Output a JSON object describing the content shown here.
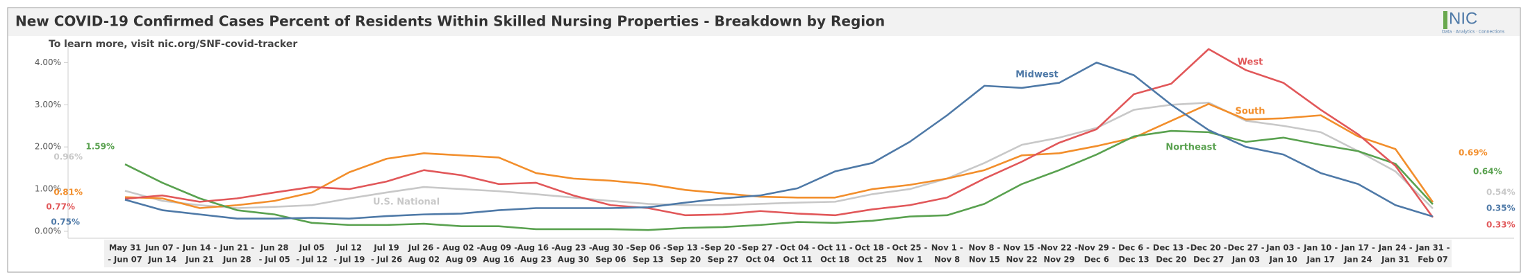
{
  "chart_data": {
    "type": "line",
    "title": "New COVID-19 Confirmed Cases Percent of Residents Within Skilled Nursing Properties - Breakdown by Region",
    "subtitle": "To learn more, visit nic.org/SNF-covid-tracker",
    "logo": "NIC",
    "logo_tagline": "Data · Analytics · Connections",
    "categories": [
      [
        "May 31",
        "- Jun 07"
      ],
      [
        "Jun 07 -",
        "Jun 14"
      ],
      [
        "Jun 14 -",
        "Jun 21"
      ],
      [
        "Jun 21 -",
        "Jun 28"
      ],
      [
        "Jun 28",
        "- Jul 05"
      ],
      [
        "Jul 05",
        "- Jul 12"
      ],
      [
        "Jul 12",
        "- Jul 19"
      ],
      [
        "Jul 19",
        "- Jul 26"
      ],
      [
        "Jul 26 -",
        "Aug 02"
      ],
      [
        "Aug 02 -",
        "Aug 09"
      ],
      [
        "Aug 09 -",
        "Aug 16"
      ],
      [
        "Aug 16 -",
        "Aug 23"
      ],
      [
        "Aug 23 -",
        "Aug 30"
      ],
      [
        "Aug 30 -",
        "Sep 06"
      ],
      [
        "Sep 06 -",
        "Sep 13"
      ],
      [
        "Sep 13 -",
        "Sep 20"
      ],
      [
        "Sep 20 -",
        "Sep 27"
      ],
      [
        "Sep 27 -",
        "Oct 04"
      ],
      [
        "Oct 04 -",
        "Oct 11"
      ],
      [
        "Oct 11 -",
        "Oct 18"
      ],
      [
        "Oct 18 -",
        "Oct 25"
      ],
      [
        "Oct 25 -",
        "Nov 1"
      ],
      [
        "Nov 1 -",
        "Nov 8"
      ],
      [
        "Nov 8 -",
        "Nov 15"
      ],
      [
        "Nov 15 -",
        "Nov 22"
      ],
      [
        "Nov 22 -",
        "Nov 29"
      ],
      [
        "Nov 29 -",
        "Dec 6"
      ],
      [
        "Dec 6 -",
        "Dec 13"
      ],
      [
        "Dec 13 -",
        "Dec 20"
      ],
      [
        "Dec 20 -",
        "Dec 27"
      ],
      [
        "Dec 27 -",
        "Jan 03"
      ],
      [
        "Jan 03 -",
        "Jan 10"
      ],
      [
        "Jan 10 -",
        "Jan 17"
      ],
      [
        "Jan 17 -",
        "Jan 24"
      ],
      [
        "Jan 24 -",
        "Jan 31"
      ],
      [
        "Jan 31 -",
        "Feb 07"
      ]
    ],
    "series": [
      {
        "name": "Midwest",
        "color": "#4e79a7",
        "values": [
          0.75,
          0.5,
          0.4,
          0.3,
          0.3,
          0.32,
          0.3,
          0.36,
          0.4,
          0.42,
          0.5,
          0.55,
          0.55,
          0.55,
          0.57,
          0.68,
          0.78,
          0.85,
          1.02,
          1.42,
          1.62,
          2.12,
          2.75,
          3.45,
          3.4,
          3.52,
          4.0,
          3.7,
          3.0,
          2.4,
          2.0,
          1.82,
          1.38,
          1.12,
          0.62,
          0.35
        ],
        "value_labels": [
          "0.75%",
          null,
          null,
          null,
          null,
          null,
          null,
          null,
          null,
          null,
          null,
          null,
          null,
          null,
          null,
          null,
          null,
          null,
          null,
          null,
          null,
          null,
          null,
          null,
          null,
          null,
          null,
          null,
          null,
          null,
          null,
          null,
          null,
          null,
          null,
          "0.35%"
        ]
      },
      {
        "name": "West",
        "color": "#e15759",
        "values": [
          0.77,
          0.85,
          0.7,
          0.78,
          0.92,
          1.05,
          1.0,
          1.18,
          1.45,
          1.33,
          1.12,
          1.15,
          0.85,
          0.62,
          0.55,
          0.38,
          0.4,
          0.48,
          0.42,
          0.38,
          0.52,
          0.62,
          0.8,
          1.25,
          1.65,
          2.1,
          2.42,
          3.25,
          3.5,
          4.32,
          3.82,
          3.52,
          2.88,
          2.3,
          1.55,
          0.33
        ],
        "value_labels": [
          "0.77%",
          null,
          null,
          null,
          null,
          null,
          null,
          null,
          null,
          null,
          null,
          null,
          null,
          null,
          null,
          null,
          null,
          null,
          null,
          null,
          null,
          null,
          null,
          null,
          null,
          null,
          null,
          null,
          null,
          null,
          null,
          null,
          null,
          null,
          null,
          "0.33%"
        ]
      },
      {
        "name": "South",
        "color": "#f28e2b",
        "values": [
          0.81,
          0.78,
          0.55,
          0.62,
          0.72,
          0.92,
          1.4,
          1.72,
          1.85,
          1.8,
          1.75,
          1.38,
          1.25,
          1.2,
          1.12,
          0.98,
          0.9,
          0.82,
          0.8,
          0.8,
          1.0,
          1.1,
          1.25,
          1.45,
          1.8,
          1.85,
          2.02,
          2.22,
          2.62,
          3.02,
          2.65,
          2.68,
          2.75,
          2.25,
          1.95,
          0.69
        ],
        "value_labels": [
          "0.81%",
          null,
          null,
          null,
          null,
          null,
          null,
          null,
          null,
          null,
          null,
          null,
          null,
          null,
          null,
          null,
          null,
          null,
          null,
          null,
          null,
          null,
          null,
          null,
          null,
          null,
          null,
          null,
          null,
          null,
          null,
          null,
          null,
          null,
          null,
          "0.69%"
        ]
      },
      {
        "name": "Northeast",
        "color": "#59a14f",
        "values": [
          1.59,
          1.15,
          0.78,
          0.5,
          0.4,
          0.2,
          0.15,
          0.15,
          0.18,
          0.12,
          0.12,
          0.05,
          0.05,
          0.05,
          0.03,
          0.08,
          0.1,
          0.15,
          0.22,
          0.2,
          0.25,
          0.35,
          0.38,
          0.65,
          1.12,
          1.45,
          1.82,
          2.25,
          2.38,
          2.35,
          2.12,
          2.22,
          2.05,
          1.9,
          1.6,
          0.64
        ],
        "value_labels": [
          "1.59%",
          null,
          null,
          null,
          null,
          null,
          null,
          null,
          null,
          null,
          null,
          null,
          null,
          null,
          null,
          null,
          null,
          null,
          null,
          null,
          null,
          null,
          null,
          null,
          null,
          null,
          null,
          null,
          null,
          null,
          null,
          null,
          null,
          null,
          null,
          "0.64%"
        ]
      },
      {
        "name": "U.S. National",
        "color": "#c8c8c8",
        "values": [
          0.96,
          0.72,
          0.62,
          0.55,
          0.58,
          0.62,
          0.78,
          0.92,
          1.05,
          1.0,
          0.95,
          0.88,
          0.8,
          0.72,
          0.65,
          0.62,
          0.62,
          0.65,
          0.68,
          0.7,
          0.88,
          1.0,
          1.25,
          1.62,
          2.05,
          2.22,
          2.45,
          2.88,
          3.0,
          3.05,
          2.62,
          2.5,
          2.35,
          1.9,
          1.42,
          0.54
        ],
        "value_labels": [
          "0.96%",
          null,
          null,
          null,
          null,
          null,
          null,
          null,
          null,
          null,
          null,
          null,
          null,
          null,
          null,
          null,
          null,
          null,
          null,
          null,
          null,
          null,
          null,
          null,
          null,
          null,
          null,
          null,
          null,
          null,
          null,
          null,
          null,
          null,
          null,
          "0.54%"
        ]
      }
    ],
    "ylim": [
      0,
      4.4
    ],
    "yticks": [
      {
        "value": 0,
        "label": "0.00%"
      },
      {
        "value": 1,
        "label": "1.00%"
      },
      {
        "value": 2,
        "label": "2.00%"
      },
      {
        "value": 3,
        "label": "3.00%"
      },
      {
        "value": 4,
        "label": "4.00%"
      }
    ],
    "grid": false
  }
}
